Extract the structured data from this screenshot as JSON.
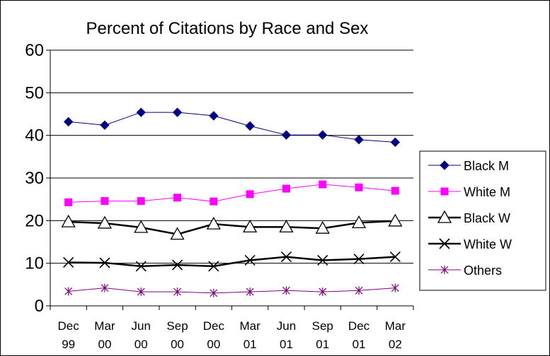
{
  "chart_data": {
    "type": "line",
    "title": "Percent of Citations by Race and Sex",
    "xlabel": "",
    "ylabel": "",
    "ylim": [
      0,
      60
    ],
    "yticks": [
      0,
      10,
      20,
      30,
      40,
      50,
      60
    ],
    "grid": "horizontal",
    "legend_position": "right",
    "categories": [
      [
        "Dec",
        "99"
      ],
      [
        "Mar",
        "00"
      ],
      [
        "Jun",
        "00"
      ],
      [
        "Sep",
        "00"
      ],
      [
        "Dec",
        "00"
      ],
      [
        "Mar",
        "01"
      ],
      [
        "Jun",
        "01"
      ],
      [
        "Sep",
        "01"
      ],
      [
        "Dec",
        "01"
      ],
      [
        "Mar",
        "02"
      ]
    ],
    "series": [
      {
        "name": "Black M",
        "color": "#000080",
        "marker": "diamond",
        "values": [
          43.2,
          42.4,
          45.4,
          45.4,
          44.6,
          42.2,
          40.1,
          40.1,
          39.0,
          38.4
        ]
      },
      {
        "name": "White M",
        "color": "#ff00ff",
        "marker": "square",
        "values": [
          24.3,
          24.6,
          24.6,
          25.4,
          24.5,
          26.2,
          27.5,
          28.5,
          27.8,
          27.0
        ]
      },
      {
        "name": "Black W",
        "color": "#000000",
        "marker": "triangle-open",
        "values": [
          19.7,
          19.4,
          18.4,
          16.8,
          19.2,
          18.5,
          18.5,
          18.2,
          19.5,
          19.9
        ]
      },
      {
        "name": "White W",
        "color": "#000000",
        "marker": "x",
        "values": [
          10.2,
          10.1,
          9.3,
          9.6,
          9.3,
          10.7,
          11.5,
          10.7,
          11.0,
          11.5
        ]
      },
      {
        "name": "Others",
        "color": "#800080",
        "marker": "asterisk",
        "values": [
          3.4,
          4.2,
          3.3,
          3.3,
          3.0,
          3.3,
          3.6,
          3.3,
          3.6,
          4.2
        ]
      }
    ]
  }
}
